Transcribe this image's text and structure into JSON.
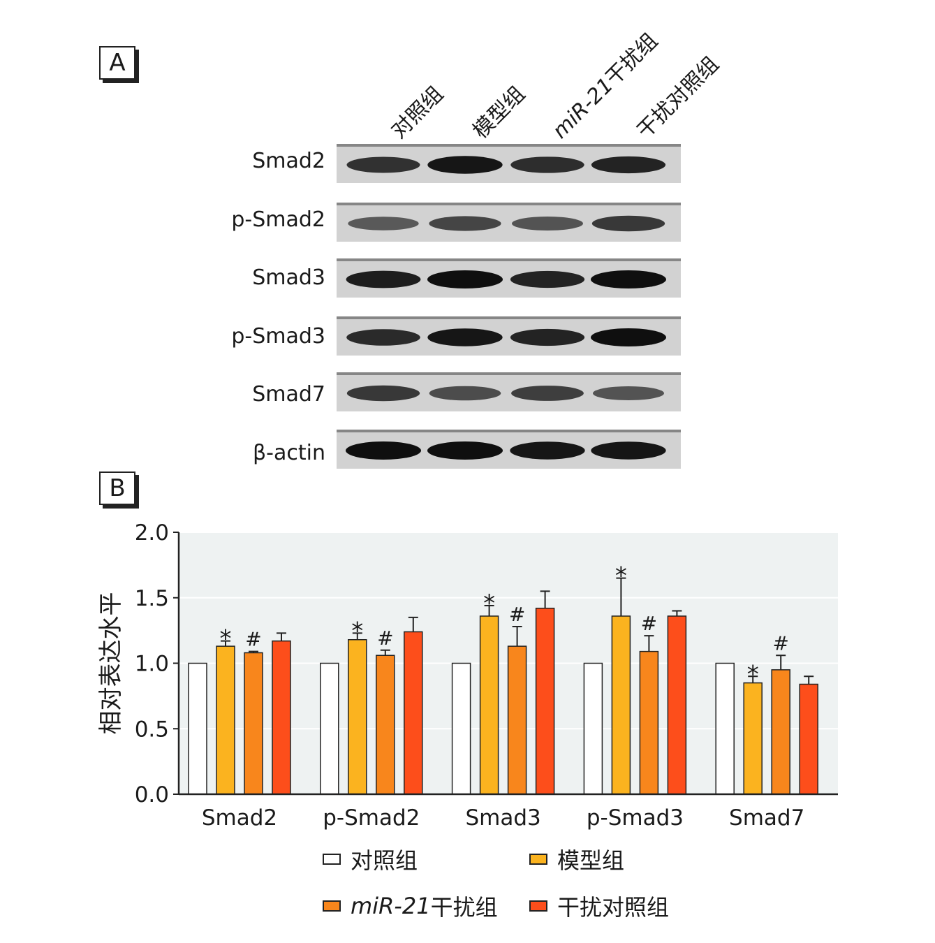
{
  "panels": {
    "a": "A",
    "b": "B"
  },
  "groups": [
    {
      "name": "对照组",
      "italic_prefix": "",
      "color": "#ffffff"
    },
    {
      "name": "模型组",
      "italic_prefix": "",
      "color": "#fbb31f"
    },
    {
      "name": "干扰组",
      "italic_prefix": "miR-21",
      "color": "#f8861c"
    },
    {
      "name": "干扰对照组",
      "italic_prefix": "",
      "color": "#fd4e1b"
    }
  ],
  "blot": {
    "proteins": [
      "Smad2",
      "p-Smad2",
      "Smad3",
      "p-Smad3",
      "Smad7",
      "β-actin"
    ],
    "band_intensity": [
      [
        0.75,
        0.95,
        0.78,
        0.85
      ],
      [
        0.45,
        0.6,
        0.5,
        0.7
      ],
      [
        0.9,
        1.0,
        0.85,
        1.0
      ],
      [
        0.8,
        0.95,
        0.85,
        1.0
      ],
      [
        0.7,
        0.55,
        0.65,
        0.5
      ],
      [
        1.0,
        1.0,
        0.95,
        0.95
      ]
    ]
  },
  "chart_data": {
    "type": "bar",
    "categories": [
      "Smad2",
      "p-Smad2",
      "Smad3",
      "p-Smad3",
      "Smad7"
    ],
    "ylabel": "相对表达水平",
    "ylim": [
      0,
      2.0
    ],
    "yticks": [
      "0.0",
      "0.5",
      "1.0",
      "1.5",
      "2.0"
    ],
    "grid": true,
    "series": [
      {
        "name": "对照组",
        "values": [
          1.0,
          1.0,
          1.0,
          1.0,
          1.0
        ],
        "errors": [
          0,
          0,
          0,
          0,
          0
        ],
        "marks": [
          "",
          "",
          "",
          "",
          ""
        ]
      },
      {
        "name": "模型组",
        "values": [
          1.13,
          1.18,
          1.36,
          1.36,
          0.85
        ],
        "errors": [
          0.04,
          0.05,
          0.08,
          0.29,
          0.05
        ],
        "marks": [
          "*",
          "*",
          "*",
          "*",
          "*"
        ]
      },
      {
        "name": "miR-21干扰组",
        "values": [
          1.08,
          1.06,
          1.13,
          1.09,
          0.95
        ],
        "errors": [
          0.01,
          0.04,
          0.15,
          0.12,
          0.11
        ],
        "marks": [
          "#",
          "#",
          "#",
          "#",
          "#"
        ]
      },
      {
        "name": "干扰对照组",
        "values": [
          1.17,
          1.24,
          1.42,
          1.36,
          0.84
        ],
        "errors": [
          0.06,
          0.11,
          0.13,
          0.04,
          0.06
        ],
        "marks": [
          "",
          "",
          "",
          "",
          ""
        ]
      }
    ]
  }
}
